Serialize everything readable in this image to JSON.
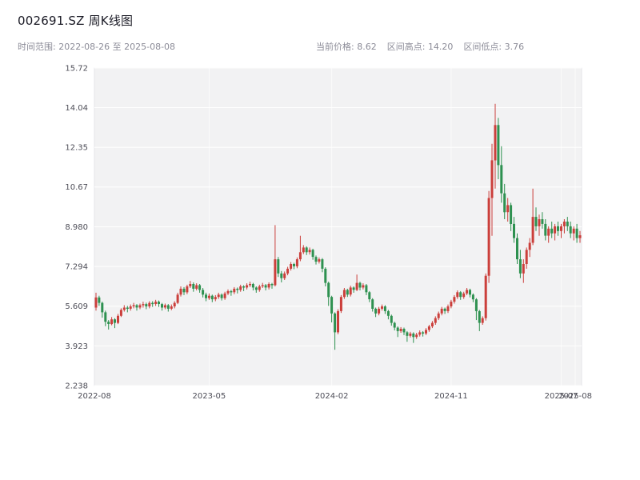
{
  "header": {
    "title": "002691.SZ 周K线图",
    "date_range": "时间范围: 2022-08-26 至 2025-08-08",
    "stats": [
      {
        "label": "当前价格:",
        "value": "8.62"
      },
      {
        "label": "区间高点:",
        "value": "14.20"
      },
      {
        "label": "区间低点:",
        "value": "3.76"
      }
    ]
  },
  "chart_data": {
    "type": "candlestick",
    "title": "002691.SZ 周K线图",
    "symbol": "002691.SZ",
    "interval": "weekly",
    "start_date": "2022-08-26",
    "end_date": "2025-08-08",
    "current_price": 8.62,
    "range_high": 14.2,
    "range_low": 3.76,
    "ylim": [
      2.238,
      15.72
    ],
    "y_ticks": [
      {
        "value": 2.238,
        "label": "2.238"
      },
      {
        "value": 3.923,
        "label": "3.923"
      },
      {
        "value": 5.609,
        "label": "5.609"
      },
      {
        "value": 7.294,
        "label": "7.294"
      },
      {
        "value": 8.98,
        "label": "8.980"
      },
      {
        "value": 10.67,
        "label": "10.67"
      },
      {
        "value": 12.35,
        "label": "12.35"
      },
      {
        "value": 14.04,
        "label": "14.04"
      },
      {
        "value": 15.72,
        "label": "15.72"
      }
    ],
    "x_ticks": [
      {
        "week_index": -0.5,
        "label": "2022-08"
      },
      {
        "week_index": 36,
        "label": "2023-05"
      },
      {
        "week_index": 75,
        "label": "2024-02"
      },
      {
        "week_index": 113,
        "label": "2024-11"
      },
      {
        "week_index": 148,
        "label": "2025-07"
      },
      {
        "week_index": 152.5,
        "label": "2025-08"
      }
    ],
    "colors": {
      "up": "#cb3f3b",
      "down": "#2e9150",
      "plot_bg": "#f2f2f3",
      "plot_border": "#e4e4e9",
      "grid": "#ffffff",
      "tick": "#4d4d57"
    },
    "candles": [
      [
        5.55,
        6.18,
        5.42,
        5.98
      ],
      [
        5.98,
        6.05,
        5.62,
        5.75
      ],
      [
        5.75,
        5.8,
        5.12,
        5.35
      ],
      [
        5.35,
        5.42,
        4.76,
        4.95
      ],
      [
        4.95,
        5.02,
        4.62,
        4.85
      ],
      [
        4.85,
        5.15,
        4.8,
        5.05
      ],
      [
        5.05,
        5.1,
        4.68,
        4.9
      ],
      [
        4.9,
        5.28,
        4.85,
        5.2
      ],
      [
        5.2,
        5.52,
        5.15,
        5.45
      ],
      [
        5.45,
        5.65,
        5.38,
        5.55
      ],
      [
        5.55,
        5.62,
        5.35,
        5.5
      ],
      [
        5.5,
        5.68,
        5.42,
        5.6
      ],
      [
        5.6,
        5.75,
        5.52,
        5.65
      ],
      [
        5.65,
        5.7,
        5.42,
        5.55
      ],
      [
        5.55,
        5.72,
        5.48,
        5.65
      ],
      [
        5.65,
        5.8,
        5.55,
        5.7
      ],
      [
        5.7,
        5.76,
        5.48,
        5.6
      ],
      [
        5.6,
        5.82,
        5.52,
        5.75
      ],
      [
        5.75,
        5.82,
        5.58,
        5.7
      ],
      [
        5.7,
        5.88,
        5.62,
        5.8
      ],
      [
        5.8,
        5.85,
        5.58,
        5.7
      ],
      [
        5.7,
        5.75,
        5.42,
        5.55
      ],
      [
        5.55,
        5.72,
        5.48,
        5.65
      ],
      [
        5.65,
        5.7,
        5.38,
        5.5
      ],
      [
        5.5,
        5.68,
        5.44,
        5.6
      ],
      [
        5.6,
        5.82,
        5.52,
        5.75
      ],
      [
        5.75,
        6.18,
        5.7,
        6.1
      ],
      [
        6.1,
        6.45,
        6.02,
        6.35
      ],
      [
        6.35,
        6.42,
        6.08,
        6.2
      ],
      [
        6.2,
        6.52,
        6.12,
        6.45
      ],
      [
        6.45,
        6.68,
        6.38,
        6.55
      ],
      [
        6.55,
        6.62,
        6.22,
        6.35
      ],
      [
        6.35,
        6.58,
        6.28,
        6.5
      ],
      [
        6.5,
        6.55,
        6.18,
        6.3
      ],
      [
        6.3,
        6.38,
        5.98,
        6.1
      ],
      [
        6.1,
        6.18,
        5.82,
        5.95
      ],
      [
        5.95,
        6.15,
        5.88,
        6.05
      ],
      [
        6.05,
        6.1,
        5.78,
        5.9
      ],
      [
        5.9,
        6.08,
        5.82,
        6.0
      ],
      [
        6.0,
        6.18,
        5.92,
        6.1
      ],
      [
        6.1,
        6.15,
        5.85,
        5.95
      ],
      [
        5.95,
        6.22,
        5.88,
        6.15
      ],
      [
        6.15,
        6.32,
        6.08,
        6.25
      ],
      [
        6.25,
        6.3,
        6.05,
        6.2
      ],
      [
        6.2,
        6.42,
        6.12,
        6.35
      ],
      [
        6.35,
        6.4,
        6.15,
        6.3
      ],
      [
        6.3,
        6.52,
        6.22,
        6.45
      ],
      [
        6.45,
        6.5,
        6.25,
        6.4
      ],
      [
        6.4,
        6.58,
        6.32,
        6.5
      ],
      [
        6.5,
        6.65,
        6.42,
        6.55
      ],
      [
        6.55,
        6.6,
        6.28,
        6.4
      ],
      [
        6.4,
        6.45,
        6.18,
        6.3
      ],
      [
        6.3,
        6.52,
        6.22,
        6.45
      ],
      [
        6.45,
        6.6,
        6.38,
        6.5
      ],
      [
        6.5,
        6.55,
        6.28,
        6.4
      ],
      [
        6.4,
        6.62,
        6.32,
        6.55
      ],
      [
        6.55,
        6.6,
        6.35,
        6.5
      ],
      [
        6.5,
        9.05,
        6.45,
        7.6
      ],
      [
        7.6,
        7.7,
        6.85,
        7.0
      ],
      [
        7.0,
        7.1,
        6.62,
        6.8
      ],
      [
        6.8,
        7.08,
        6.72,
        7.0
      ],
      [
        7.0,
        7.28,
        6.92,
        7.2
      ],
      [
        7.2,
        7.48,
        7.12,
        7.4
      ],
      [
        7.4,
        7.45,
        7.18,
        7.3
      ],
      [
        7.3,
        7.68,
        7.22,
        7.6
      ],
      [
        7.6,
        8.6,
        7.52,
        7.9
      ],
      [
        7.9,
        8.2,
        7.82,
        8.1
      ],
      [
        8.1,
        8.15,
        7.78,
        7.9
      ],
      [
        7.9,
        8.1,
        7.8,
        8.0
      ],
      [
        8.0,
        8.05,
        7.58,
        7.7
      ],
      [
        7.7,
        7.76,
        7.38,
        7.5
      ],
      [
        7.5,
        7.68,
        7.42,
        7.6
      ],
      [
        7.6,
        7.65,
        7.05,
        7.2
      ],
      [
        7.2,
        7.26,
        6.45,
        6.6
      ],
      [
        6.6,
        6.65,
        5.62,
        6.0
      ],
      [
        6.0,
        6.05,
        4.92,
        5.3
      ],
      [
        5.3,
        5.35,
        3.76,
        4.5
      ],
      [
        4.5,
        5.48,
        4.42,
        5.4
      ],
      [
        5.4,
        6.08,
        5.32,
        6.0
      ],
      [
        6.0,
        6.38,
        5.92,
        6.3
      ],
      [
        6.3,
        6.35,
        6.0,
        6.1
      ],
      [
        6.1,
        6.48,
        6.02,
        6.4
      ],
      [
        6.4,
        6.45,
        6.18,
        6.3
      ],
      [
        6.3,
        6.95,
        6.25,
        6.6
      ],
      [
        6.6,
        6.65,
        6.28,
        6.4
      ],
      [
        6.4,
        6.58,
        6.32,
        6.5
      ],
      [
        6.5,
        6.55,
        6.08,
        6.2
      ],
      [
        6.2,
        6.25,
        5.78,
        5.9
      ],
      [
        5.9,
        5.95,
        5.38,
        5.5
      ],
      [
        5.5,
        5.55,
        5.15,
        5.3
      ],
      [
        5.3,
        5.58,
        5.22,
        5.5
      ],
      [
        5.5,
        5.68,
        5.42,
        5.6
      ],
      [
        5.6,
        5.65,
        5.28,
        5.4
      ],
      [
        5.4,
        5.45,
        5.05,
        5.2
      ],
      [
        5.2,
        5.25,
        4.78,
        4.9
      ],
      [
        4.9,
        4.95,
        4.58,
        4.7
      ],
      [
        4.7,
        4.75,
        4.3,
        4.55
      ],
      [
        4.55,
        4.72,
        4.48,
        4.65
      ],
      [
        4.65,
        4.7,
        4.38,
        4.5
      ],
      [
        4.5,
        4.55,
        4.1,
        4.35
      ],
      [
        4.35,
        4.52,
        4.28,
        4.45
      ],
      [
        4.45,
        4.5,
        4.05,
        4.3
      ],
      [
        4.3,
        4.48,
        4.22,
        4.4
      ],
      [
        4.4,
        4.58,
        4.32,
        4.5
      ],
      [
        4.5,
        4.55,
        4.32,
        4.45
      ],
      [
        4.45,
        4.68,
        4.38,
        4.6
      ],
      [
        4.6,
        4.82,
        4.52,
        4.75
      ],
      [
        4.75,
        4.98,
        4.68,
        4.9
      ],
      [
        4.9,
        5.18,
        4.82,
        5.1
      ],
      [
        5.1,
        5.38,
        5.02,
        5.3
      ],
      [
        5.3,
        5.58,
        5.22,
        5.5
      ],
      [
        5.5,
        5.55,
        5.28,
        5.4
      ],
      [
        5.4,
        5.68,
        5.32,
        5.6
      ],
      [
        5.6,
        5.88,
        5.52,
        5.8
      ],
      [
        5.8,
        6.08,
        5.72,
        6.0
      ],
      [
        6.0,
        6.28,
        5.92,
        6.2
      ],
      [
        6.2,
        6.25,
        5.88,
        6.0
      ],
      [
        6.0,
        6.22,
        5.92,
        6.15
      ],
      [
        6.15,
        6.38,
        6.08,
        6.3
      ],
      [
        6.3,
        6.35,
        5.98,
        6.1
      ],
      [
        6.1,
        6.15,
        5.78,
        5.9
      ],
      [
        5.9,
        5.95,
        5.02,
        5.4
      ],
      [
        5.4,
        5.45,
        4.55,
        4.9
      ],
      [
        4.9,
        5.18,
        4.82,
        5.1
      ],
      [
        5.1,
        7.0,
        5.0,
        6.9
      ],
      [
        6.9,
        10.5,
        6.6,
        10.2
      ],
      [
        10.2,
        12.5,
        8.6,
        11.8
      ],
      [
        11.8,
        14.2,
        10.6,
        13.3
      ],
      [
        13.3,
        13.6,
        11.0,
        11.6
      ],
      [
        11.6,
        12.4,
        10.0,
        10.4
      ],
      [
        10.4,
        10.8,
        9.3,
        9.6
      ],
      [
        9.6,
        10.2,
        9.2,
        9.9
      ],
      [
        9.9,
        10.0,
        8.8,
        9.1
      ],
      [
        9.1,
        9.4,
        8.3,
        8.5
      ],
      [
        8.5,
        8.7,
        7.4,
        7.6
      ],
      [
        7.6,
        8.0,
        6.8,
        7.0
      ],
      [
        7.0,
        7.6,
        6.6,
        7.4
      ],
      [
        7.4,
        8.1,
        7.2,
        8.0
      ],
      [
        8.0,
        8.5,
        7.7,
        8.3
      ],
      [
        8.3,
        10.6,
        8.2,
        9.4
      ],
      [
        9.4,
        9.8,
        8.8,
        9.0
      ],
      [
        9.0,
        9.5,
        8.6,
        9.3
      ],
      [
        9.3,
        9.6,
        8.9,
        9.1
      ],
      [
        9.1,
        9.3,
        8.4,
        8.6
      ],
      [
        8.6,
        9.0,
        8.3,
        8.9
      ],
      [
        8.9,
        9.2,
        8.5,
        8.7
      ],
      [
        8.7,
        9.1,
        8.4,
        9.0
      ],
      [
        9.0,
        9.2,
        8.6,
        8.8
      ],
      [
        8.8,
        9.1,
        8.5,
        9.0
      ],
      [
        9.0,
        9.3,
        8.7,
        9.2
      ],
      [
        9.2,
        9.4,
        8.8,
        9.0
      ],
      [
        9.0,
        9.2,
        8.5,
        8.7
      ],
      [
        8.7,
        9.0,
        8.4,
        8.9
      ],
      [
        8.9,
        9.1,
        8.3,
        8.5
      ],
      [
        8.5,
        8.8,
        8.3,
        8.62
      ]
    ],
    "layout": {
      "plot_left": 118,
      "plot_right": 727,
      "plot_top": 85,
      "plot_bottom": 482,
      "grid": "on",
      "legend": "none"
    }
  }
}
